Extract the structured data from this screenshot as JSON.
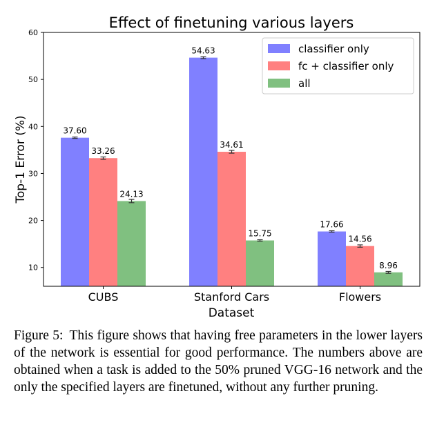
{
  "chart_data": {
    "type": "bar",
    "title": "Effect of finetuning various layers",
    "xlabel": "Dataset",
    "ylabel": "Top-1 Error (%)",
    "ylim": [
      6,
      60
    ],
    "yticks": [
      10,
      20,
      30,
      40,
      50,
      60
    ],
    "categories": [
      "CUBS",
      "Stanford Cars",
      "Flowers"
    ],
    "series": [
      {
        "name": "classifier only",
        "color": "#8080ff",
        "values": [
          37.6,
          54.63,
          17.66
        ],
        "labels": [
          "37.60",
          "54.63",
          "17.66"
        ]
      },
      {
        "name": "fc + classifier only",
        "color": "#ff8080",
        "values": [
          33.26,
          34.61,
          14.56
        ],
        "labels": [
          "33.26",
          "34.61",
          "14.56"
        ]
      },
      {
        "name": "all",
        "color": "#80c080",
        "values": [
          24.13,
          15.75,
          8.96
        ],
        "labels": [
          "24.13",
          "15.75",
          "8.96"
        ]
      }
    ],
    "legend_position": "top-right",
    "grid": false
  },
  "caption": {
    "label": "Figure 5:",
    "text": "This figure shows that having free parameters in the lower layers of the network is essential for good performance. The numbers above are obtained when a task is added to the 50% pruned VGG-16 network and the only the specified layers are finetuned, without any further pruning."
  }
}
